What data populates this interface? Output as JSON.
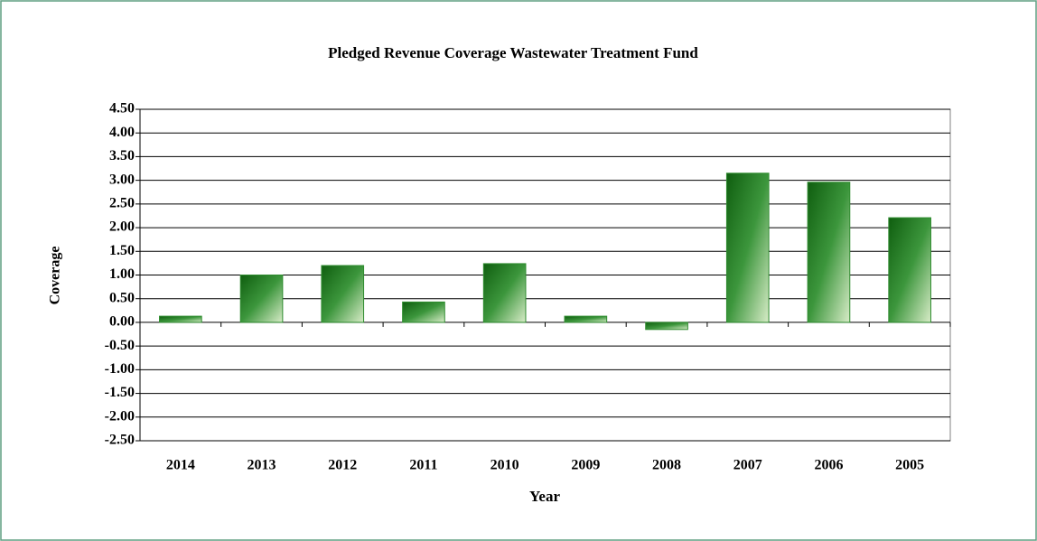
{
  "chart_data": {
    "type": "bar",
    "title": "Pledged Revenue Coverage Wastewater Treatment Fund",
    "x_label": "Year",
    "y_label": "Coverage",
    "categories": [
      "2014",
      "2013",
      "2012",
      "2011",
      "2010",
      "2009",
      "2008",
      "2007",
      "2006",
      "2005"
    ],
    "values": [
      0.13,
      1.0,
      1.2,
      0.43,
      1.24,
      0.13,
      -0.15,
      3.15,
      2.96,
      2.21
    ],
    "color": "#2e8b2e",
    "ylim": [
      -2.5,
      4.5
    ],
    "yticks": [
      {
        "value": -2.5,
        "label": "-2.50"
      },
      {
        "value": -2,
        "label": "-2.00"
      },
      {
        "value": -1.5,
        "label": "-1.50"
      },
      {
        "value": -1,
        "label": "-1.00"
      },
      {
        "value": -0.5,
        "label": "-0.50"
      },
      {
        "value": 0,
        "label": "0.00"
      },
      {
        "value": 0.5,
        "label": "0.50"
      },
      {
        "value": 1,
        "label": "1.00"
      },
      {
        "value": 1.5,
        "label": "1.50"
      },
      {
        "value": 2,
        "label": "2.00"
      },
      {
        "value": 2.5,
        "label": "2.50"
      },
      {
        "value": 3,
        "label": "3.00"
      },
      {
        "value": 3.5,
        "label": "3.50"
      },
      {
        "value": 4,
        "label": "4.00"
      },
      {
        "value": 4.5,
        "label": "4.50"
      }
    ],
    "grid": true
  }
}
